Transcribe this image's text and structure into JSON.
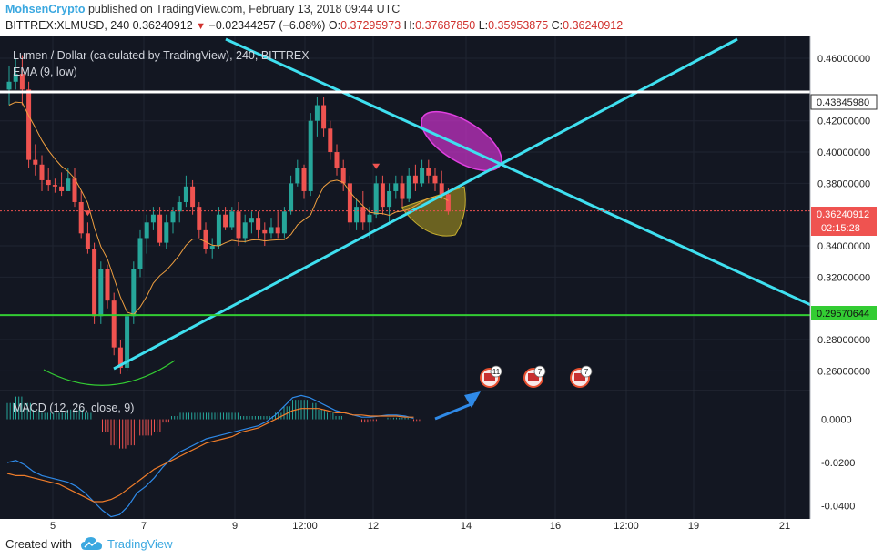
{
  "header": {
    "author": "MohsenCrypto",
    "published_text": "published on TradingView.com, February 13, 2018 09:44 UTC",
    "symbol": "BITTREX:XLMUSD, 240",
    "last": "0.36240912",
    "change_arrow": "▼",
    "change": "−0.02344257 (−6.08%)",
    "o_label": "O:",
    "o_value": "0.37295973",
    "h_label": "H:",
    "h_value": "0.37687850",
    "l_label": "L:",
    "l_value": "0.35953875",
    "c_label": "C:",
    "c_value": "0.36240912"
  },
  "footer": {
    "created_with": "Created with",
    "brand": "TradingView"
  },
  "chart_data": {
    "type": "candlestick",
    "title": "Lumen / Dollar (calculated by TradingView), 240, BITTREX",
    "indicator_label": "EMA (9, low)",
    "x_tick_labels": [
      "5",
      "7",
      "9",
      "12:00",
      "12",
      "14",
      "16",
      "12:00",
      "19",
      "21"
    ],
    "y_tick_labels": [
      "0.46000000",
      "0.42000000",
      "0.40000000",
      "0.38000000",
      "0.34000000",
      "0.32000000",
      "0.28000000",
      "0.26000000"
    ],
    "ylim": [
      0.248,
      0.474
    ],
    "price_labels": {
      "resistance": "0.43845980",
      "current": "0.36240912",
      "countdown": "02:15:28",
      "support": "0.29570644"
    },
    "levels": {
      "resistance": 0.43846,
      "support": 0.29571,
      "current": 0.36241
    },
    "candles": [
      [
        0.44,
        0.455,
        0.43,
        0.445
      ],
      [
        0.445,
        0.46,
        0.44,
        0.45
      ],
      [
        0.45,
        0.462,
        0.43,
        0.44
      ],
      [
        0.44,
        0.445,
        0.39,
        0.395
      ],
      [
        0.395,
        0.405,
        0.385,
        0.392
      ],
      [
        0.392,
        0.398,
        0.375,
        0.382
      ],
      [
        0.382,
        0.39,
        0.375,
        0.379
      ],
      [
        0.379,
        0.383,
        0.374,
        0.378
      ],
      [
        0.378,
        0.387,
        0.372,
        0.375
      ],
      [
        0.375,
        0.39,
        0.375,
        0.383
      ],
      [
        0.383,
        0.39,
        0.365,
        0.368
      ],
      [
        0.368,
        0.375,
        0.345,
        0.348
      ],
      [
        0.348,
        0.355,
        0.335,
        0.338
      ],
      [
        0.338,
        0.342,
        0.29,
        0.295
      ],
      [
        0.295,
        0.33,
        0.29,
        0.325
      ],
      [
        0.325,
        0.328,
        0.3,
        0.305
      ],
      [
        0.305,
        0.31,
        0.27,
        0.275
      ],
      [
        0.275,
        0.28,
        0.258,
        0.262
      ],
      [
        0.262,
        0.3,
        0.26,
        0.295
      ],
      [
        0.295,
        0.33,
        0.29,
        0.325
      ],
      [
        0.325,
        0.35,
        0.32,
        0.345
      ],
      [
        0.345,
        0.36,
        0.335,
        0.355
      ],
      [
        0.355,
        0.365,
        0.35,
        0.36
      ],
      [
        0.36,
        0.365,
        0.34,
        0.342
      ],
      [
        0.342,
        0.36,
        0.338,
        0.355
      ],
      [
        0.355,
        0.365,
        0.348,
        0.362
      ],
      [
        0.362,
        0.372,
        0.355,
        0.368
      ],
      [
        0.368,
        0.385,
        0.365,
        0.378
      ],
      [
        0.378,
        0.382,
        0.36,
        0.365
      ],
      [
        0.365,
        0.368,
        0.345,
        0.35
      ],
      [
        0.35,
        0.355,
        0.335,
        0.338
      ],
      [
        0.338,
        0.345,
        0.332,
        0.34
      ],
      [
        0.34,
        0.365,
        0.338,
        0.36
      ],
      [
        0.36,
        0.365,
        0.35,
        0.352
      ],
      [
        0.352,
        0.365,
        0.35,
        0.362
      ],
      [
        0.362,
        0.368,
        0.34,
        0.345
      ],
      [
        0.345,
        0.36,
        0.342,
        0.355
      ],
      [
        0.355,
        0.362,
        0.348,
        0.358
      ],
      [
        0.358,
        0.362,
        0.345,
        0.35
      ],
      [
        0.35,
        0.355,
        0.34,
        0.348
      ],
      [
        0.348,
        0.358,
        0.345,
        0.352
      ],
      [
        0.352,
        0.362,
        0.345,
        0.348
      ],
      [
        0.348,
        0.365,
        0.345,
        0.362
      ],
      [
        0.362,
        0.385,
        0.36,
        0.38
      ],
      [
        0.38,
        0.395,
        0.378,
        0.39
      ],
      [
        0.39,
        0.392,
        0.37,
        0.375
      ],
      [
        0.375,
        0.425,
        0.372,
        0.42
      ],
      [
        0.42,
        0.435,
        0.41,
        0.43
      ],
      [
        0.43,
        0.435,
        0.41,
        0.415
      ],
      [
        0.415,
        0.42,
        0.395,
        0.4
      ],
      [
        0.4,
        0.405,
        0.385,
        0.39
      ],
      [
        0.39,
        0.395,
        0.375,
        0.38
      ],
      [
        0.38,
        0.385,
        0.35,
        0.355
      ],
      [
        0.355,
        0.37,
        0.35,
        0.365
      ],
      [
        0.365,
        0.375,
        0.35,
        0.355
      ],
      [
        0.355,
        0.365,
        0.345,
        0.36
      ],
      [
        0.36,
        0.385,
        0.358,
        0.38
      ],
      [
        0.38,
        0.385,
        0.36,
        0.365
      ],
      [
        0.365,
        0.38,
        0.355,
        0.375
      ],
      [
        0.375,
        0.385,
        0.37,
        0.38
      ],
      [
        0.38,
        0.385,
        0.365,
        0.37
      ],
      [
        0.37,
        0.39,
        0.368,
        0.385
      ],
      [
        0.385,
        0.392,
        0.375,
        0.38
      ],
      [
        0.38,
        0.395,
        0.378,
        0.39
      ],
      [
        0.39,
        0.395,
        0.38,
        0.385
      ],
      [
        0.385,
        0.39,
        0.375,
        0.38
      ],
      [
        0.38,
        0.388,
        0.37,
        0.373
      ],
      [
        0.373,
        0.377,
        0.36,
        0.362
      ]
    ],
    "ema_label": "EMA (9, low)",
    "down_markers_at_candles": [
      12,
      56
    ],
    "macd": {
      "label": "MACD (12, 26, close, 9)",
      "y_tick_labels": [
        "0.0000",
        "-0.0200",
        "-0.0400"
      ],
      "ylim": [
        -0.046,
        0.012
      ],
      "macd_line": [
        -0.02,
        -0.019,
        -0.021,
        -0.024,
        -0.026,
        -0.027,
        -0.028,
        -0.029,
        -0.031,
        -0.034,
        -0.038,
        -0.042,
        -0.045,
        -0.044,
        -0.04,
        -0.034,
        -0.031,
        -0.027,
        -0.022,
        -0.018,
        -0.015,
        -0.013,
        -0.011,
        -0.009,
        -0.008,
        -0.007,
        -0.006,
        -0.005,
        -0.004,
        -0.003,
        -0.001,
        0.002,
        0.006,
        0.01,
        0.011,
        0.01,
        0.008,
        0.006,
        0.004,
        0.003,
        0.002,
        0.001,
        0.001,
        0.0015,
        0.002,
        0.002,
        0.0015,
        0.0005
      ],
      "signal_line": [
        -0.025,
        -0.026,
        -0.026,
        -0.027,
        -0.028,
        -0.029,
        -0.03,
        -0.032,
        -0.034,
        -0.036,
        -0.038,
        -0.038,
        -0.037,
        -0.035,
        -0.032,
        -0.029,
        -0.026,
        -0.023,
        -0.021,
        -0.019,
        -0.017,
        -0.015,
        -0.013,
        -0.011,
        -0.01,
        -0.009,
        -0.008,
        -0.006,
        -0.005,
        -0.004,
        -0.002,
        0.0,
        0.002,
        0.004,
        0.005,
        0.005,
        0.005,
        0.004,
        0.003,
        0.003,
        0.002,
        0.002,
        0.0015,
        0.0015,
        0.0015,
        0.0015,
        0.001,
        0.001
      ]
    },
    "event_badges": [
      "11",
      "7",
      "7"
    ]
  },
  "colors": {
    "background": "#131722",
    "up": "#26a69a",
    "down": "#ef5350",
    "trendline": "#3fe0f0",
    "support": "#33cc33",
    "resistance": "#ffffff",
    "ema": "#f0a040",
    "macd": "#2f8ae8",
    "signal": "#f07d2a",
    "ellipse_magenta": "#cc33cc",
    "ellipse_olive": "#b4a020"
  }
}
